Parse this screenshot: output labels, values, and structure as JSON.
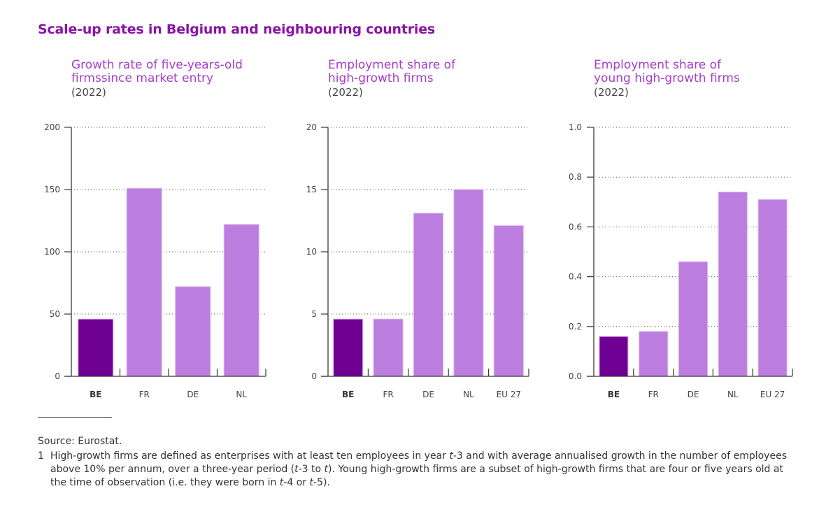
{
  "title": "Scale-up rates in Belgium and neighbouring countries",
  "colors": {
    "highlight": "#6f0094",
    "bar": "#bc7ede",
    "bar_edge": "#dcb3ef",
    "title": "#8a14a6",
    "panel_title": "#a53dc9",
    "axis": "#3d3530"
  },
  "chart_data": [
    {
      "type": "bar",
      "title": "Growth rate of five-years-old firmssince market entry",
      "title_lines": [
        "Growth rate of five-years-old",
        "firmssince market entry"
      ],
      "subtitle": "(2022)",
      "categories": [
        "BE",
        "FR",
        "DE",
        "NL"
      ],
      "highlight": "BE",
      "values": [
        46,
        151,
        72,
        122
      ],
      "ylim": [
        0,
        200
      ],
      "yticks": [
        0,
        50,
        100,
        150,
        200
      ],
      "ytick_labels": [
        "0",
        "50",
        "100",
        "150",
        "200"
      ],
      "grid": "dotted-horizontal",
      "xlabel": "",
      "ylabel": ""
    },
    {
      "type": "bar",
      "title": "Employment share of high-growth firms",
      "title_lines": [
        "Employment share of",
        "high-growth firms"
      ],
      "subtitle": "(2022)",
      "categories": [
        "BE",
        "FR",
        "DE",
        "NL",
        "EU 27"
      ],
      "highlight": "BE",
      "values": [
        4.6,
        4.6,
        13.1,
        15.0,
        12.1
      ],
      "ylim": [
        0,
        20
      ],
      "yticks": [
        0,
        5,
        10,
        15,
        20
      ],
      "ytick_labels": [
        "0",
        "5",
        "10",
        "15",
        "20"
      ],
      "grid": "dotted-horizontal",
      "xlabel": "",
      "ylabel": ""
    },
    {
      "type": "bar",
      "title": "Employment share of young high-growth firms",
      "title_lines": [
        "Employment share of",
        "young high-growth firms"
      ],
      "subtitle": "(2022)",
      "categories": [
        "BE",
        "FR",
        "DE",
        "NL",
        "EU 27"
      ],
      "highlight": "BE",
      "values": [
        0.16,
        0.18,
        0.46,
        0.74,
        0.71
      ],
      "ylim": [
        0,
        1.0
      ],
      "yticks": [
        0,
        0.2,
        0.4,
        0.6,
        0.8,
        1.0
      ],
      "ytick_labels": [
        "0.0",
        "0.2",
        "0.4",
        "0.6",
        "0.8",
        "1.0"
      ],
      "grid": "dotted-horizontal",
      "xlabel": "",
      "ylabel": ""
    }
  ],
  "footer": {
    "source": "Source: Eurostat.",
    "note_number": "1",
    "note_parts": [
      {
        "t": "High-growth firms are defined as enterprises with at least ten employees in year ",
        "i": false
      },
      {
        "t": "t",
        "i": true
      },
      {
        "t": "-3 and with average annualised growth in the number of employees above 10% per annum, over a three-year period (",
        "i": false
      },
      {
        "t": "t",
        "i": true
      },
      {
        "t": "-3 to ",
        "i": false
      },
      {
        "t": "t",
        "i": true
      },
      {
        "t": "). Young high-growth firms are a subset of high-growth firms that are four or five years old at the time of observation (i.e. they were born in ",
        "i": false
      },
      {
        "t": "t",
        "i": true
      },
      {
        "t": "-4 or ",
        "i": false
      },
      {
        "t": "t",
        "i": true
      },
      {
        "t": "-5).",
        "i": false
      }
    ]
  }
}
